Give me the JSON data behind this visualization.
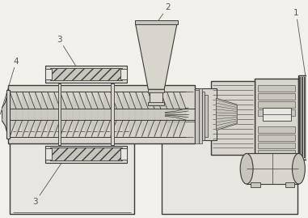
{
  "fig_width": 3.81,
  "fig_height": 2.69,
  "dpi": 100,
  "bg_color": "#f2f0eb",
  "line_color": "#3a3a3a",
  "label_color": "#555555",
  "font_size": 7.5
}
